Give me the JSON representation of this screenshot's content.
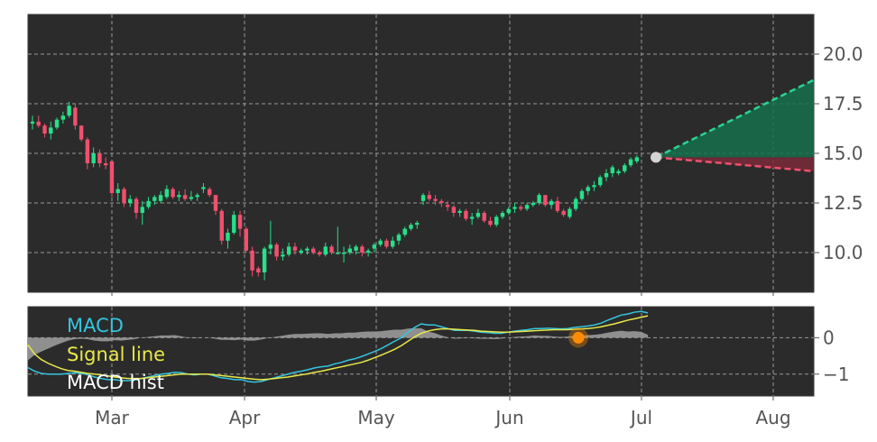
{
  "chart_data": [
    {
      "type": "candlestick",
      "title": "",
      "xlabel": "",
      "ylabel": "",
      "ylim": [
        8.0,
        22.0
      ],
      "y_ticks": [
        "10.0",
        "12.5",
        "15.0",
        "17.5",
        "20.0"
      ],
      "x_ticks": [
        "Mar",
        "Apr",
        "May",
        "Jun",
        "Jul",
        "Aug"
      ],
      "grid": true,
      "colors": {
        "background": "#2b2b2b",
        "up": "#26e08a",
        "down": "#f0506e",
        "grid": "#9a9a9a"
      },
      "candles_ohlc": [
        [
          16.5,
          16.9,
          16.2,
          16.6
        ],
        [
          16.6,
          16.9,
          16.3,
          16.4
        ],
        [
          16.4,
          16.5,
          15.8,
          16.0
        ],
        [
          16.0,
          16.6,
          15.7,
          16.3
        ],
        [
          16.3,
          16.8,
          16.2,
          16.7
        ],
        [
          16.7,
          17.1,
          16.5,
          16.9
        ],
        [
          16.9,
          17.6,
          16.8,
          17.4
        ],
        [
          17.3,
          17.5,
          16.2,
          16.4
        ],
        [
          16.4,
          16.4,
          15.6,
          15.7
        ],
        [
          15.7,
          15.8,
          14.2,
          14.5
        ],
        [
          14.5,
          15.3,
          14.3,
          15.0
        ],
        [
          15.0,
          15.2,
          14.3,
          14.5
        ],
        [
          14.5,
          14.8,
          14.2,
          14.4
        ],
        [
          14.6,
          14.6,
          12.8,
          13.0
        ],
        [
          13.0,
          13.5,
          12.6,
          13.2
        ],
        [
          13.2,
          13.3,
          12.3,
          12.5
        ],
        [
          12.5,
          12.9,
          12.3,
          12.7
        ],
        [
          12.7,
          12.8,
          11.7,
          12.0
        ],
        [
          12.0,
          12.6,
          11.4,
          12.3
        ],
        [
          12.3,
          12.8,
          12.2,
          12.6
        ],
        [
          12.6,
          12.9,
          12.4,
          12.8
        ],
        [
          12.6,
          13.1,
          12.5,
          12.9
        ],
        [
          12.8,
          13.4,
          12.7,
          13.2
        ],
        [
          13.2,
          13.3,
          12.7,
          12.8
        ],
        [
          12.8,
          13.1,
          12.6,
          12.9
        ],
        [
          12.9,
          13.2,
          12.6,
          12.7
        ],
        [
          12.7,
          13.1,
          12.6,
          12.8
        ],
        [
          12.8,
          13.0,
          12.6,
          12.9
        ],
        [
          13.2,
          13.5,
          13.0,
          13.3
        ],
        [
          13.2,
          13.3,
          12.8,
          12.9
        ],
        [
          12.9,
          12.9,
          11.9,
          12.1
        ],
        [
          12.1,
          12.2,
          10.4,
          10.6
        ],
        [
          10.6,
          11.2,
          10.2,
          11.0
        ],
        [
          11.0,
          12.1,
          10.9,
          11.9
        ],
        [
          11.9,
          12.1,
          10.8,
          11.2
        ],
        [
          11.2,
          11.3,
          10.0,
          10.1
        ],
        [
          10.1,
          10.3,
          8.8,
          9.1
        ],
        [
          9.2,
          9.3,
          8.8,
          9.0
        ],
        [
          9.0,
          10.3,
          8.6,
          10.2
        ],
        [
          10.2,
          11.6,
          9.9,
          10.4
        ],
        [
          10.4,
          10.5,
          9.6,
          9.8
        ],
        [
          9.8,
          10.2,
          9.6,
          9.9
        ],
        [
          9.9,
          10.5,
          9.8,
          10.3
        ],
        [
          10.3,
          10.5,
          9.9,
          10.1
        ],
        [
          10.0,
          10.2,
          9.9,
          10.1
        ],
        [
          10.1,
          10.3,
          9.9,
          10.2
        ],
        [
          10.2,
          10.3,
          9.9,
          10.0
        ],
        [
          10.0,
          10.1,
          9.8,
          9.9
        ],
        [
          9.9,
          10.5,
          9.8,
          10.3
        ],
        [
          10.3,
          10.4,
          9.9,
          10.0
        ],
        [
          10.0,
          11.3,
          9.9,
          10.0
        ],
        [
          10.0,
          10.3,
          9.5,
          10.0
        ],
        [
          10.0,
          10.4,
          9.9,
          10.2
        ],
        [
          10.1,
          10.4,
          9.9,
          10.3
        ],
        [
          10.3,
          10.4,
          9.8,
          10.0
        ],
        [
          10.0,
          10.2,
          9.8,
          10.1
        ],
        [
          10.2,
          10.5,
          10.0,
          10.4
        ],
        [
          10.4,
          10.7,
          10.3,
          10.6
        ],
        [
          10.6,
          10.7,
          10.2,
          10.3
        ],
        [
          10.3,
          10.8,
          10.2,
          10.6
        ],
        [
          10.6,
          11.0,
          10.4,
          10.9
        ],
        [
          10.9,
          11.3,
          10.8,
          11.2
        ],
        [
          11.2,
          11.5,
          11.1,
          11.4
        ],
        [
          11.4,
          11.6,
          11.2,
          11.5
        ],
        [
          12.6,
          13.0,
          12.4,
          12.9
        ],
        [
          12.9,
          13.1,
          12.6,
          12.7
        ],
        [
          12.7,
          12.9,
          12.4,
          12.6
        ],
        [
          12.6,
          12.7,
          12.3,
          12.5
        ],
        [
          12.4,
          12.6,
          12.1,
          12.3
        ],
        [
          12.3,
          12.4,
          11.8,
          12.0
        ],
        [
          12.0,
          12.2,
          11.8,
          12.1
        ],
        [
          12.1,
          12.2,
          11.6,
          11.7
        ],
        [
          11.7,
          12.0,
          11.4,
          11.8
        ],
        [
          11.8,
          12.2,
          11.7,
          12.0
        ],
        [
          12.0,
          12.1,
          11.5,
          11.6
        ],
        [
          11.6,
          11.8,
          11.3,
          11.4
        ],
        [
          11.4,
          11.9,
          11.3,
          11.8
        ],
        [
          11.8,
          12.1,
          11.7,
          12.0
        ],
        [
          12.0,
          12.3,
          11.9,
          12.2
        ],
        [
          12.2,
          12.5,
          12.0,
          12.3
        ],
        [
          12.3,
          12.4,
          12.1,
          12.2
        ],
        [
          12.2,
          12.5,
          12.1,
          12.4
        ],
        [
          12.4,
          12.6,
          12.3,
          12.5
        ],
        [
          12.5,
          13.0,
          12.4,
          12.9
        ],
        [
          12.9,
          12.9,
          12.3,
          12.4
        ],
        [
          12.4,
          12.7,
          12.2,
          12.6
        ],
        [
          12.6,
          12.8,
          12.0,
          12.1
        ],
        [
          12.1,
          12.2,
          11.8,
          11.9
        ],
        [
          11.8,
          12.3,
          11.7,
          12.2
        ],
        [
          12.2,
          12.8,
          12.1,
          12.7
        ],
        [
          12.7,
          13.2,
          12.6,
          13.1
        ],
        [
          13.1,
          13.4,
          12.9,
          13.3
        ],
        [
          13.3,
          13.6,
          13.1,
          13.4
        ],
        [
          13.4,
          13.9,
          13.3,
          13.8
        ],
        [
          13.8,
          14.2,
          13.6,
          14.0
        ],
        [
          14.0,
          14.4,
          13.8,
          14.3
        ],
        [
          14.0,
          14.2,
          13.9,
          14.1
        ],
        [
          14.1,
          14.5,
          14.0,
          14.4
        ],
        [
          14.4,
          14.8,
          14.3,
          14.7
        ],
        [
          14.6,
          14.9,
          14.5,
          14.8
        ]
      ],
      "forecast": {
        "start": 14.8,
        "upper_end": 18.7,
        "lower_end": 14.1,
        "colors": {
          "upper_line": "#2ad396",
          "lower_line": "#f0506e",
          "upper_fill": "#16704c",
          "lower_fill": "#7a2a38",
          "marker": "#d4d4d4"
        }
      }
    },
    {
      "type": "line",
      "title": "",
      "ylim": [
        -1.6,
        0.85
      ],
      "y_ticks": [
        "0",
        "−1"
      ],
      "x_ticks": [
        "Mar",
        "Apr",
        "May",
        "Jun",
        "Jul",
        "Aug"
      ],
      "grid": true,
      "legend": {
        "placement": "top-left"
      },
      "series": [
        {
          "name": "MACD",
          "color": "#33c6e0",
          "values": [
            -0.82,
            -0.92,
            -0.98,
            -1.0,
            -1.0,
            -1.0,
            -0.98,
            -0.96,
            -0.98,
            -1.02,
            -1.08,
            -1.12,
            -1.15,
            -1.15,
            -1.18,
            -1.18,
            -1.16,
            -1.12,
            -1.08,
            -1.04,
            -1.0,
            -0.98,
            -0.95,
            -0.96,
            -1.0,
            -1.02,
            -1.0,
            -1.0,
            -1.05,
            -1.1,
            -1.12,
            -1.15,
            -1.15,
            -1.2,
            -1.22,
            -1.2,
            -1.15,
            -1.1,
            -1.05,
            -1.0,
            -0.95,
            -0.92,
            -0.88,
            -0.83,
            -0.8,
            -0.78,
            -0.72,
            -0.68,
            -0.62,
            -0.58,
            -0.52,
            -0.45,
            -0.38,
            -0.3,
            -0.2,
            -0.1,
            0.0,
            0.15,
            0.28,
            0.38,
            0.35,
            0.35,
            0.3,
            0.25,
            0.2,
            0.2,
            0.2,
            0.18,
            0.15,
            0.14,
            0.12,
            0.12,
            0.15,
            0.18,
            0.2,
            0.22,
            0.25,
            0.25,
            0.26,
            0.25,
            0.24,
            0.25,
            0.28,
            0.3,
            0.32,
            0.35,
            0.4,
            0.48,
            0.55,
            0.62,
            0.65,
            0.7,
            0.72,
            0.68
          ]
        },
        {
          "name": "Signal line",
          "color": "#e8e84a",
          "values": [
            -0.2,
            -0.45,
            -0.6,
            -0.7,
            -0.78,
            -0.85,
            -0.9,
            -0.92,
            -0.95,
            -0.98,
            -1.0,
            -1.02,
            -1.05,
            -1.08,
            -1.1,
            -1.12,
            -1.12,
            -1.12,
            -1.1,
            -1.08,
            -1.06,
            -1.04,
            -1.02,
            -1.0,
            -1.0,
            -1.0,
            -1.0,
            -1.0,
            -1.02,
            -1.04,
            -1.06,
            -1.08,
            -1.1,
            -1.12,
            -1.14,
            -1.15,
            -1.14,
            -1.12,
            -1.1,
            -1.08,
            -1.05,
            -1.02,
            -0.99,
            -0.95,
            -0.92,
            -0.88,
            -0.84,
            -0.8,
            -0.76,
            -0.72,
            -0.68,
            -0.62,
            -0.55,
            -0.48,
            -0.4,
            -0.32,
            -0.22,
            -0.1,
            0.02,
            0.12,
            0.18,
            0.22,
            0.24,
            0.24,
            0.23,
            0.22,
            0.21,
            0.2,
            0.18,
            0.17,
            0.16,
            0.15,
            0.15,
            0.16,
            0.17,
            0.18,
            0.19,
            0.2,
            0.21,
            0.22,
            0.22,
            0.22,
            0.23,
            0.24,
            0.25,
            0.27,
            0.3,
            0.34,
            0.38,
            0.43,
            0.48,
            0.52,
            0.56,
            0.6
          ]
        },
        {
          "name": "MACD hist",
          "color": "#9a9a9a",
          "values": [
            -0.62,
            -0.47,
            -0.38,
            -0.3,
            -0.22,
            -0.15,
            -0.08,
            -0.04,
            -0.03,
            -0.04,
            -0.08,
            -0.1,
            -0.1,
            -0.07,
            -0.08,
            -0.06,
            -0.04,
            0.0,
            0.02,
            0.04,
            0.06,
            0.06,
            0.07,
            0.04,
            0.0,
            -0.02,
            0.0,
            0.0,
            -0.03,
            -0.06,
            -0.06,
            -0.07,
            -0.05,
            -0.08,
            -0.08,
            -0.05,
            -0.01,
            0.02,
            0.05,
            0.08,
            0.1,
            0.1,
            0.11,
            0.12,
            0.12,
            0.1,
            0.12,
            0.12,
            0.14,
            0.14,
            0.16,
            0.17,
            0.17,
            0.18,
            0.2,
            0.22,
            0.22,
            0.25,
            0.26,
            0.26,
            0.17,
            0.13,
            0.06,
            0.01,
            -0.03,
            -0.02,
            -0.01,
            -0.02,
            -0.03,
            -0.03,
            -0.04,
            -0.03,
            0.0,
            0.02,
            0.03,
            0.04,
            0.06,
            0.05,
            0.05,
            0.03,
            0.02,
            0.03,
            0.05,
            0.06,
            0.07,
            0.08,
            0.1,
            0.14,
            0.17,
            0.19,
            0.17,
            0.18,
            0.16,
            0.08
          ]
        }
      ],
      "marker": {
        "value": 0.0,
        "color": "#ff8c00"
      }
    }
  ]
}
